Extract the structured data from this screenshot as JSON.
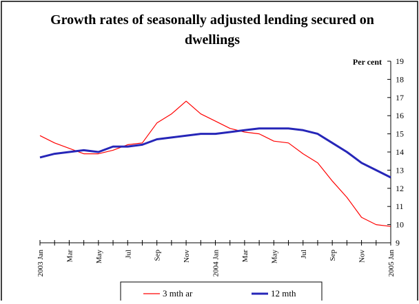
{
  "chart_data": {
    "type": "line",
    "title_line1": "Growth rates of seasonally adjusted lending secured on",
    "title_line2": "dwellings",
    "ylabel": "Per cent",
    "ylim": [
      9,
      19
    ],
    "yticks": [
      9,
      10,
      11,
      12,
      13,
      14,
      15,
      16,
      17,
      18,
      19
    ],
    "grid": false,
    "legend_placement": "bottom-center",
    "x_tick_labels": [
      "2003 Jan",
      "Mar",
      "May",
      "Jul",
      "Sep",
      "Nov",
      "2004 Jan",
      "Mar",
      "May",
      "Jul",
      "Sep",
      "Nov",
      "2005 Jan"
    ],
    "x": [
      "2003 Jan",
      "2003 Feb",
      "2003 Mar",
      "2003 Apr",
      "2003 May",
      "2003 Jun",
      "2003 Jul",
      "2003 Aug",
      "2003 Sep",
      "2003 Oct",
      "2003 Nov",
      "2003 Dec",
      "2004 Jan",
      "2004 Feb",
      "2004 Mar",
      "2004 Apr",
      "2004 May",
      "2004 Jun",
      "2004 Jul",
      "2004 Aug",
      "2004 Sep",
      "2004 Oct",
      "2004 Nov",
      "2004 Dec",
      "2005 Jan"
    ],
    "series": [
      {
        "name": "3 mth ar",
        "color": "#ff0000",
        "values": [
          14.9,
          14.5,
          14.2,
          13.9,
          13.9,
          14.1,
          14.4,
          14.5,
          15.6,
          16.1,
          16.8,
          16.1,
          15.7,
          15.3,
          15.1,
          15.0,
          14.6,
          14.5,
          13.9,
          13.4,
          12.4,
          11.5,
          10.4,
          10.0,
          9.9
        ]
      },
      {
        "name": "12 mth",
        "color": "#2626b8",
        "values": [
          13.7,
          13.9,
          14.0,
          14.1,
          14.0,
          14.3,
          14.3,
          14.4,
          14.7,
          14.8,
          14.9,
          15.0,
          15.0,
          15.1,
          15.2,
          15.3,
          15.3,
          15.3,
          15.2,
          15.0,
          14.5,
          14.0,
          13.4,
          13.0,
          12.6
        ]
      }
    ]
  }
}
